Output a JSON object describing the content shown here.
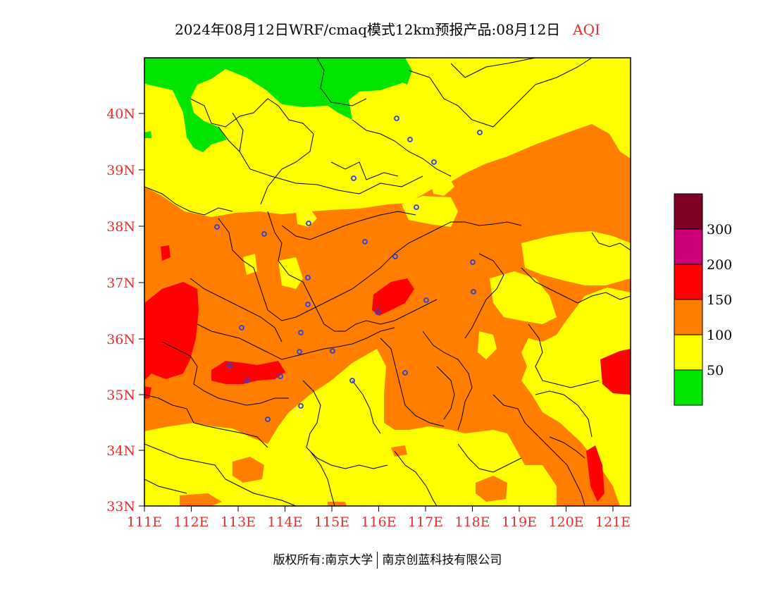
{
  "title": {
    "main": "2024年08月12日WRF/cmaq模式12km预报产品:08月12日",
    "variable": "AQI"
  },
  "axes": {
    "y_ticks": [
      "40N",
      "39N",
      "38N",
      "37N",
      "36N",
      "35N",
      "34N",
      "33N"
    ],
    "x_ticks": [
      "111E",
      "112E",
      "113E",
      "114E",
      "115E",
      "116E",
      "117E",
      "118E",
      "119E",
      "120E",
      "121E"
    ],
    "label_color": "#e03030"
  },
  "legend": {
    "bins": [
      {
        "color": "#00e400"
      },
      {
        "color": "#ffff00"
      },
      {
        "color": "#ff7e00"
      },
      {
        "color": "#ff0000"
      },
      {
        "color": "#cc0077"
      },
      {
        "color": "#7e0023"
      }
    ],
    "labels": [
      "50",
      "100",
      "150",
      "200",
      "300"
    ]
  },
  "footer": {
    "left": "版权所有:南京大学",
    "right": "南京创蓝科技有限公司"
  }
}
